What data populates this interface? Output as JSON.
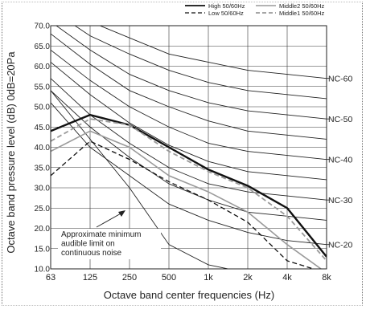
{
  "chart_data": {
    "type": "line",
    "ylabel": "Octave band pressure level (dB) 0dB=20Pa",
    "xlabel": "Octave band center frequencies (Hz)",
    "x_ticks": [
      "63",
      "125",
      "250",
      "500",
      "1k",
      "2k",
      "4k",
      "8k"
    ],
    "y_ticks": [
      "70.0",
      "65.0",
      "60.0",
      "55.0",
      "50.0",
      "45.0",
      "40.0",
      "35.0",
      "30.0",
      "25.0",
      "20.0",
      "15.0",
      "10.0"
    ],
    "ylim": [
      10,
      70
    ],
    "grid": true,
    "legend_position": "top-right",
    "series": [
      {
        "name": "High   50/60Hz",
        "style": "solid",
        "color": "#111111",
        "width": 2.4,
        "values": [
          44,
          48,
          45.5,
          40,
          34.5,
          30.5,
          25,
          13
        ]
      },
      {
        "name": "Low   50/60Hz",
        "style": "dashed",
        "color": "#111111",
        "width": 1.3,
        "values": [
          33,
          41.5,
          37,
          31.5,
          27,
          21.5,
          12,
          9
        ]
      },
      {
        "name": "Middle2  50/60Hz",
        "style": "solid",
        "color": "#9a9a9a",
        "width": 1.6,
        "values": [
          39,
          44,
          40,
          33,
          29,
          24,
          16,
          9
        ]
      },
      {
        "name": "Middle1  50/60Hz",
        "style": "dashed",
        "color": "#9a9a9a",
        "width": 1.8,
        "values": [
          41.5,
          47,
          45.5,
          39,
          34,
          30,
          23,
          12
        ]
      }
    ],
    "nc_curves": [
      {
        "label": "NC-60",
        "values": [
          77,
          71,
          67,
          63,
          61,
          59,
          58,
          57
        ]
      },
      {
        "label": "",
        "values": [
          74,
          67.5,
          63,
          59,
          56,
          54,
          53,
          52
        ]
      },
      {
        "label": "NC-50",
        "values": [
          71,
          64,
          58,
          54,
          51,
          49,
          48,
          47
        ]
      },
      {
        "label": "",
        "values": [
          68,
          60.5,
          54,
          50,
          46.5,
          44,
          43,
          42
        ]
      },
      {
        "label": "NC-40",
        "values": [
          64,
          56.5,
          50,
          45,
          41,
          39,
          38,
          37
        ]
      },
      {
        "label": "",
        "values": [
          61,
          53,
          46,
          40.5,
          36.5,
          34,
          33,
          32
        ]
      },
      {
        "label": "NC-30",
        "values": [
          57,
          48,
          41,
          35,
          31,
          29,
          28,
          27
        ]
      },
      {
        "label": "",
        "values": [
          54,
          45,
          37.5,
          31,
          27,
          24,
          23,
          22
        ]
      },
      {
        "label": "NC-20",
        "values": [
          51,
          40,
          33,
          26,
          22,
          19,
          17,
          16
        ]
      }
    ],
    "audible_limit": {
      "values": [
        54,
        42,
        30,
        16,
        11,
        9,
        8,
        8
      ]
    },
    "annotation": [
      "Approximate minimum",
      "audible limit on",
      "continuous noise"
    ]
  }
}
